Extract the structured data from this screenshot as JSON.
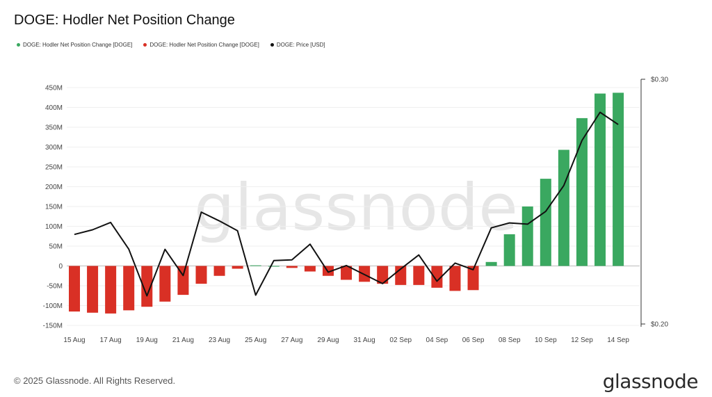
{
  "title": "DOGE: Hodler Net Position Change",
  "legend": [
    {
      "label": "DOGE: Hodler Net Position Change [DOGE]",
      "color": "#3aa860"
    },
    {
      "label": "DOGE: Hodler Net Position Change [DOGE]",
      "color": "#d93025"
    },
    {
      "label": "DOGE: Price [USD]",
      "color": "#111111"
    }
  ],
  "watermark": "glassnode",
  "footer": "© 2025 Glassnode. All Rights Reserved.",
  "logo": "glassnode",
  "chart_data": {
    "type": "bar",
    "title": "DOGE: Hodler Net Position Change",
    "categories": [
      "15 Aug",
      "16 Aug",
      "17 Aug",
      "18 Aug",
      "19 Aug",
      "20 Aug",
      "21 Aug",
      "22 Aug",
      "23 Aug",
      "24 Aug",
      "25 Aug",
      "26 Aug",
      "27 Aug",
      "28 Aug",
      "29 Aug",
      "30 Aug",
      "31 Aug",
      "01 Sep",
      "02 Sep",
      "03 Sep",
      "04 Sep",
      "05 Sep",
      "06 Sep",
      "07 Sep",
      "08 Sep",
      "09 Sep",
      "10 Sep",
      "11 Sep",
      "12 Sep",
      "13 Sep",
      "14 Sep"
    ],
    "x_tick_labels": [
      "15 Aug",
      "17 Aug",
      "19 Aug",
      "21 Aug",
      "23 Aug",
      "25 Aug",
      "27 Aug",
      "29 Aug",
      "31 Aug",
      "02 Sep",
      "04 Sep",
      "06 Sep",
      "08 Sep",
      "10 Sep",
      "12 Sep",
      "14 Sep"
    ],
    "series": [
      {
        "name": "DOGE: Hodler Net Position Change [DOGE]",
        "axis": "left",
        "positive_color": "#3aa860",
        "negative_color": "#d93025",
        "values": [
          -115000000,
          -118000000,
          -120000000,
          -112000000,
          -103000000,
          -90000000,
          -73000000,
          -45000000,
          -25000000,
          -7000000,
          1500000,
          0,
          -5000000,
          -14000000,
          -25000000,
          -35000000,
          -40000000,
          -45000000,
          -48000000,
          -48000000,
          -55000000,
          -63000000,
          -61000000,
          10000000,
          80000000,
          150000000,
          220000000,
          293000000,
          373000000,
          435000000,
          437000000
        ]
      },
      {
        "name": "DOGE: Price [USD]",
        "axis": "right",
        "color": "#111111",
        "values": [
          0.2366,
          0.2385,
          0.2415,
          0.2306,
          0.2115,
          0.2305,
          0.2198,
          0.2457,
          0.2421,
          0.2381,
          0.2118,
          0.2259,
          0.2262,
          0.2326,
          0.2212,
          0.2239,
          0.2202,
          0.2165,
          0.2225,
          0.2282,
          0.2175,
          0.2249,
          0.2222,
          0.2393,
          0.2413,
          0.2408,
          0.246,
          0.2566,
          0.275,
          0.2865,
          0.2815
        ]
      }
    ],
    "y_left": {
      "ticks": [
        "450M",
        "400M",
        "350M",
        "300M",
        "250M",
        "200M",
        "150M",
        "100M",
        "50M",
        "0",
        "-50M",
        "-100M",
        "-150M"
      ],
      "range": [
        -150000000,
        450000000
      ]
    },
    "y_right": {
      "ticks": [
        "$0.30",
        "$0.20"
      ],
      "range": [
        0.2,
        0.3
      ]
    },
    "grid": true,
    "legend_position": "top-left"
  }
}
